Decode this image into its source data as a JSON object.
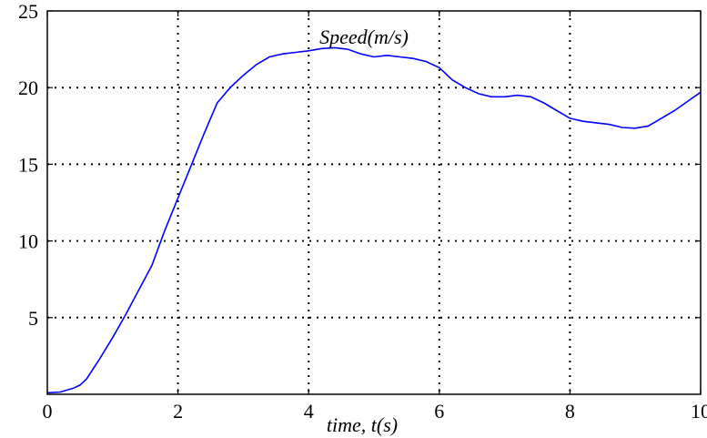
{
  "chart_data": {
    "type": "line",
    "title": "Speed(m/s)",
    "xlabel": "time, t(s)",
    "ylabel": "",
    "xlim": [
      0,
      10
    ],
    "ylim": [
      0,
      25
    ],
    "xticks": [
      0,
      2,
      4,
      6,
      8,
      10
    ],
    "yticks": [
      5,
      10,
      15,
      20,
      25
    ],
    "xtick_labels": [
      "0",
      "2",
      "4",
      "6",
      "8",
      "10"
    ],
    "ytick_labels": [
      "5",
      "10",
      "15",
      "20",
      "25"
    ],
    "grid": true,
    "line_color": "#0000ff",
    "series": [
      {
        "x": [
          0,
          0.2,
          0.4,
          0.5,
          0.6,
          0.8,
          1.0,
          1.2,
          1.4,
          1.6,
          1.8,
          2.0,
          2.2,
          2.4,
          2.6,
          2.8,
          3.0,
          3.2,
          3.4,
          3.6,
          3.8,
          4.0,
          4.2,
          4.4,
          4.6,
          4.8,
          5.0,
          5.2,
          5.4,
          5.6,
          5.8,
          6.0,
          6.2,
          6.4,
          6.6,
          6.8,
          7.0,
          7.2,
          7.4,
          7.6,
          7.8,
          8.0,
          8.2,
          8.4,
          8.6,
          8.8,
          9.0,
          9.2,
          9.4,
          9.6,
          9.8,
          10.0
        ],
        "y": [
          0.1,
          0.15,
          0.4,
          0.6,
          1.0,
          2.3,
          3.7,
          5.2,
          6.8,
          8.4,
          10.7,
          12.8,
          14.9,
          17.0,
          19.0,
          20.0,
          20.8,
          21.5,
          22.0,
          22.2,
          22.3,
          22.4,
          22.55,
          22.6,
          22.5,
          22.2,
          22.0,
          22.1,
          22.0,
          21.9,
          21.7,
          21.3,
          20.5,
          20.0,
          19.6,
          19.4,
          19.4,
          19.5,
          19.4,
          19.0,
          18.5,
          18.0,
          17.8,
          17.7,
          17.6,
          17.4,
          17.35,
          17.5,
          18.0,
          18.5,
          19.1,
          19.7
        ]
      }
    ]
  }
}
